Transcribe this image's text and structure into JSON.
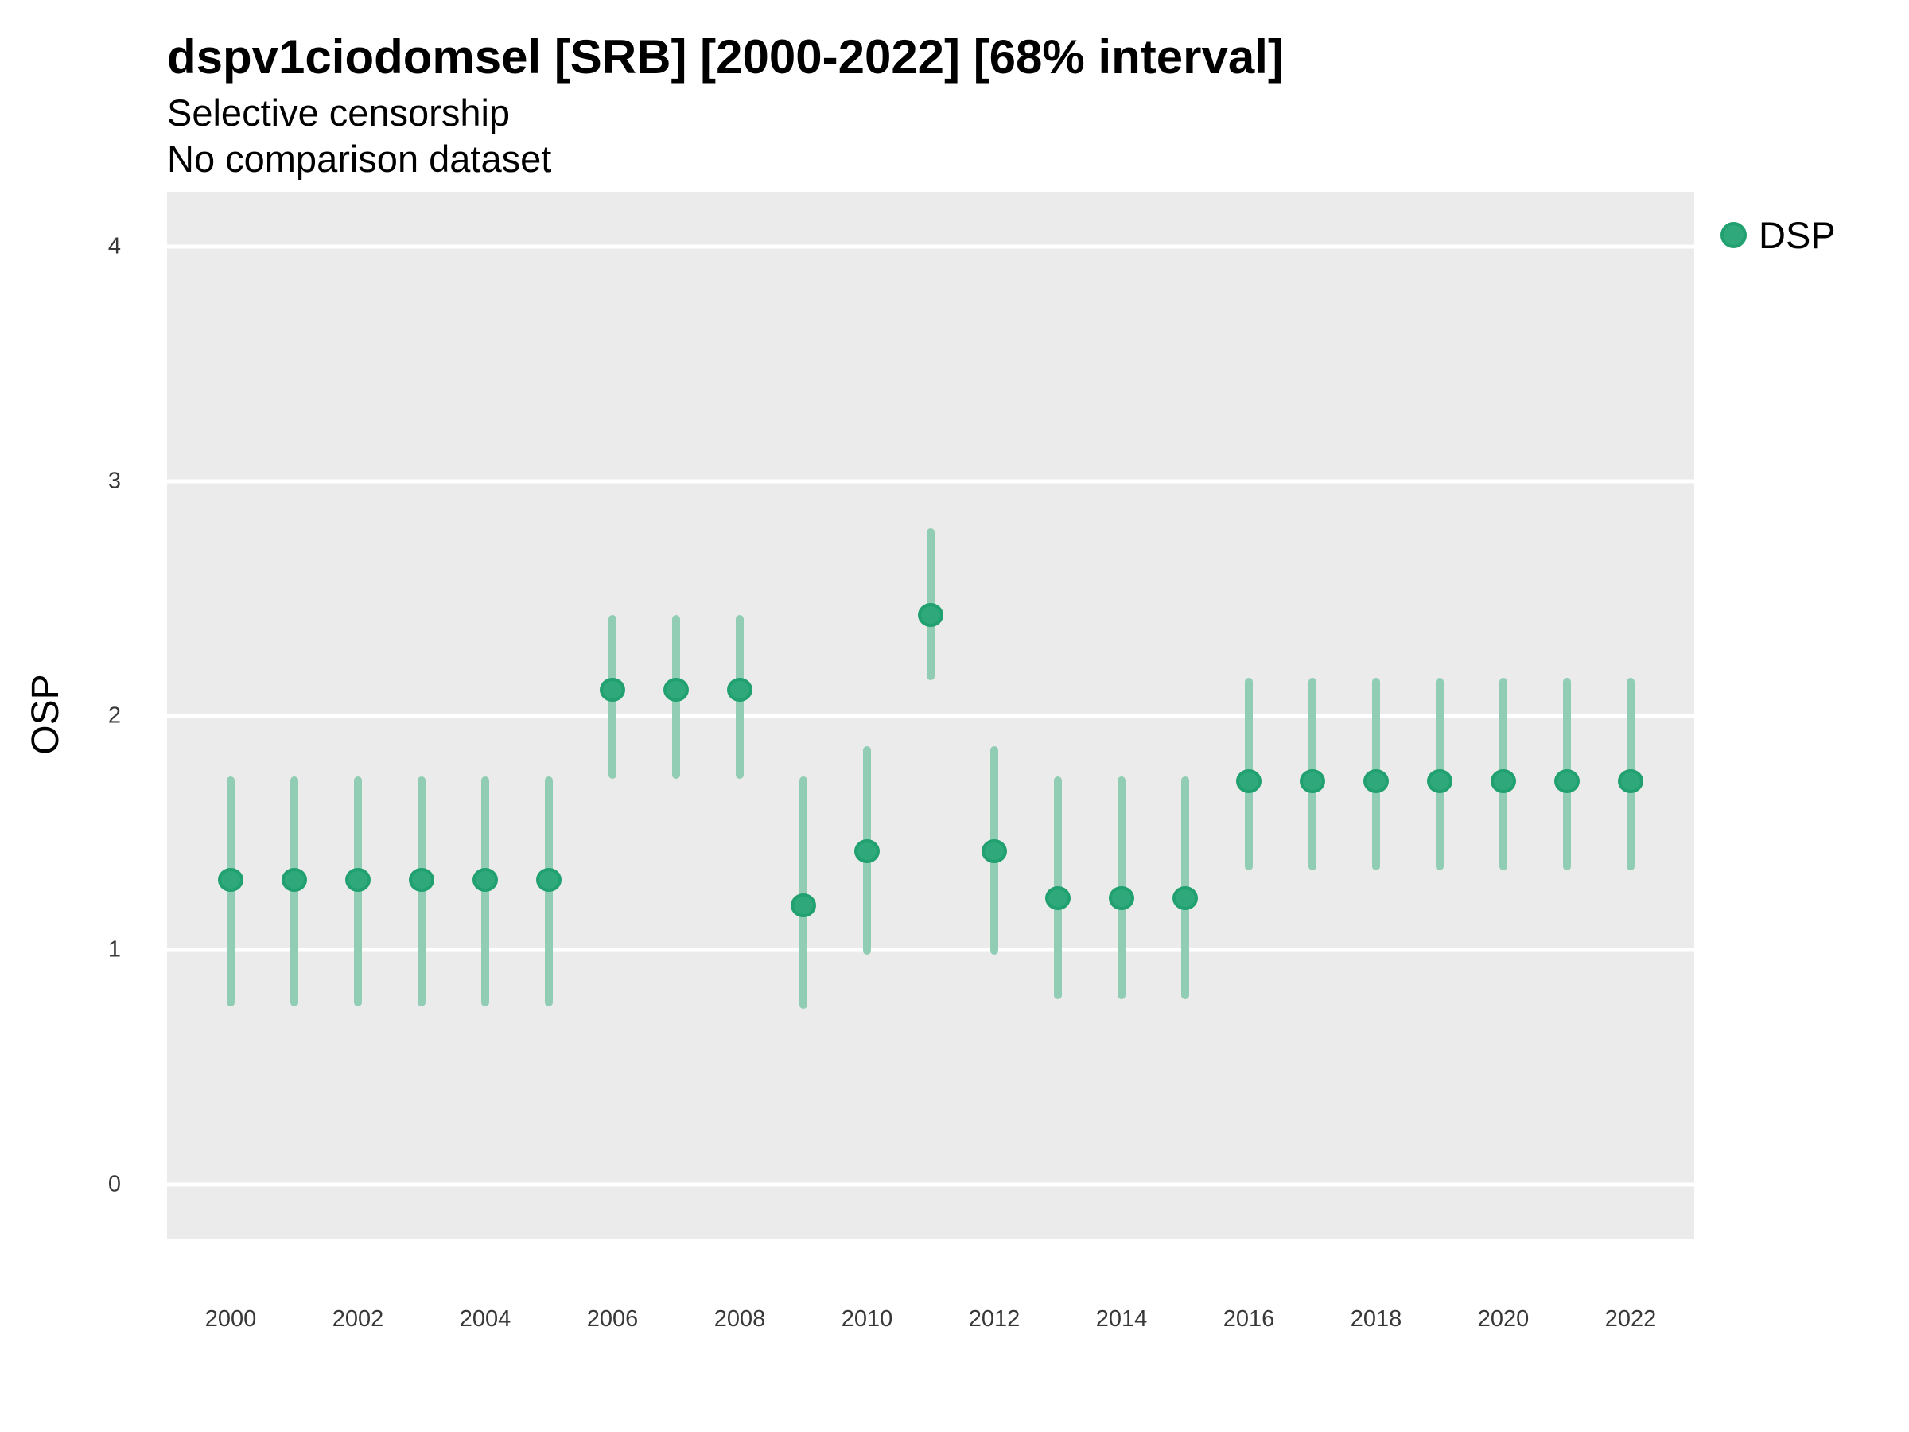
{
  "header": {
    "title": "dspv1ciodomsel [SRB] [2000-2022] [68% interval]",
    "subtitle_line1": "Selective censorship",
    "subtitle_line2": "No comparison dataset"
  },
  "legend": {
    "label": "DSP",
    "position": "right"
  },
  "colors": {
    "panel_background": "#EBEBEB",
    "gridline": "#FFFFFF",
    "interval_line": "#90CDB4",
    "point_fill": "#2FA97C",
    "point_stroke": "#21A070",
    "tick_text": "#383838",
    "title_text": "#000000"
  },
  "chart_data": {
    "type": "pointrange",
    "title": "dspv1ciodomsel [SRB] [2000-2022] [68% interval]",
    "subtitle": "Selective censorship\nNo comparison dataset",
    "xlabel": "",
    "ylabel": "OSP",
    "x_range": [
      1999,
      2023
    ],
    "y_range": [
      -0.235,
      4.235
    ],
    "x_ticks": [
      2000,
      2002,
      2004,
      2006,
      2008,
      2010,
      2012,
      2014,
      2016,
      2018,
      2020,
      2022
    ],
    "y_ticks": [
      0,
      1,
      2,
      3,
      4
    ],
    "grid": "major-horizontal-only",
    "legend_position": "right",
    "interval_level": "68%",
    "series": [
      {
        "name": "DSP",
        "points": [
          {
            "x": 2000,
            "y": 1.3,
            "lo": 0.76,
            "hi": 1.74
          },
          {
            "x": 2001,
            "y": 1.3,
            "lo": 0.76,
            "hi": 1.74
          },
          {
            "x": 2002,
            "y": 1.3,
            "lo": 0.76,
            "hi": 1.74
          },
          {
            "x": 2003,
            "y": 1.3,
            "lo": 0.76,
            "hi": 1.74
          },
          {
            "x": 2004,
            "y": 1.3,
            "lo": 0.76,
            "hi": 1.74
          },
          {
            "x": 2005,
            "y": 1.3,
            "lo": 0.76,
            "hi": 1.74
          },
          {
            "x": 2006,
            "y": 2.11,
            "lo": 1.73,
            "hi": 2.43
          },
          {
            "x": 2007,
            "y": 2.11,
            "lo": 1.73,
            "hi": 2.43
          },
          {
            "x": 2008,
            "y": 2.11,
            "lo": 1.73,
            "hi": 2.43
          },
          {
            "x": 2009,
            "y": 1.19,
            "lo": 0.75,
            "hi": 1.74
          },
          {
            "x": 2010,
            "y": 1.42,
            "lo": 0.98,
            "hi": 1.87
          },
          {
            "x": 2011,
            "y": 2.43,
            "lo": 2.15,
            "hi": 2.8
          },
          {
            "x": 2012,
            "y": 1.42,
            "lo": 0.98,
            "hi": 1.87
          },
          {
            "x": 2013,
            "y": 1.22,
            "lo": 0.79,
            "hi": 1.74
          },
          {
            "x": 2014,
            "y": 1.22,
            "lo": 0.79,
            "hi": 1.74
          },
          {
            "x": 2015,
            "y": 1.22,
            "lo": 0.79,
            "hi": 1.74
          },
          {
            "x": 2016,
            "y": 1.72,
            "lo": 1.34,
            "hi": 2.16
          },
          {
            "x": 2017,
            "y": 1.72,
            "lo": 1.34,
            "hi": 2.16
          },
          {
            "x": 2018,
            "y": 1.72,
            "lo": 1.34,
            "hi": 2.16
          },
          {
            "x": 2019,
            "y": 1.72,
            "lo": 1.34,
            "hi": 2.16
          },
          {
            "x": 2020,
            "y": 1.72,
            "lo": 1.34,
            "hi": 2.16
          },
          {
            "x": 2021,
            "y": 1.72,
            "lo": 1.34,
            "hi": 2.16
          },
          {
            "x": 2022,
            "y": 1.72,
            "lo": 1.34,
            "hi": 2.16
          }
        ]
      }
    ]
  }
}
